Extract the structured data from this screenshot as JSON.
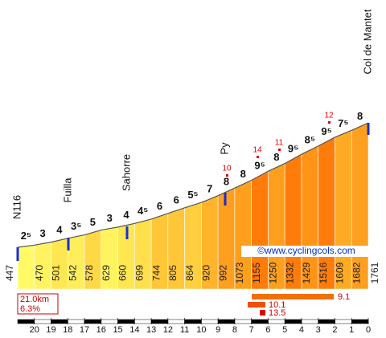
{
  "chart_data": {
    "type": "profile",
    "elevations": [
      447,
      470,
      501,
      542,
      578,
      629,
      660,
      699,
      744,
      805,
      864,
      920,
      992,
      1073,
      1155,
      1250,
      1332,
      1429,
      1516,
      1609,
      1682,
      1761
    ],
    "gradients": {
      "values": [
        2.5,
        3,
        4,
        3.5,
        5,
        3,
        4,
        4.5,
        6,
        6,
        5.5,
        7,
        8,
        8,
        9.5,
        8,
        9.5,
        8.5,
        9.5,
        7.5,
        8
      ],
      "value_labels": [
        "2⁵",
        "3",
        "4",
        "3⁵",
        "5",
        "3",
        "4",
        "4⁵",
        "6",
        "6",
        "5⁵",
        "7",
        "8",
        "8",
        "9⁵",
        "8",
        "9⁵",
        "8⁵",
        "9⁵",
        "7⁵",
        "8"
      ]
    },
    "max_gradients": [
      10,
      14,
      11,
      12
    ],
    "places": [
      "N116",
      "Fuilla",
      "Sahorre",
      "Py",
      "Col de Mantet"
    ],
    "xlim": [
      21,
      0
    ],
    "xticks": [
      20,
      19,
      18,
      17,
      16,
      15,
      14,
      13,
      12,
      11,
      10,
      9,
      8,
      7,
      6,
      5,
      4,
      3,
      2,
      1,
      0
    ],
    "summary": {
      "distance": "21.0km",
      "average": "6.3%"
    },
    "steepest": [
      "9.1",
      "10.1",
      "13.5"
    ],
    "copyright": "©www.cyclingcols.com"
  }
}
